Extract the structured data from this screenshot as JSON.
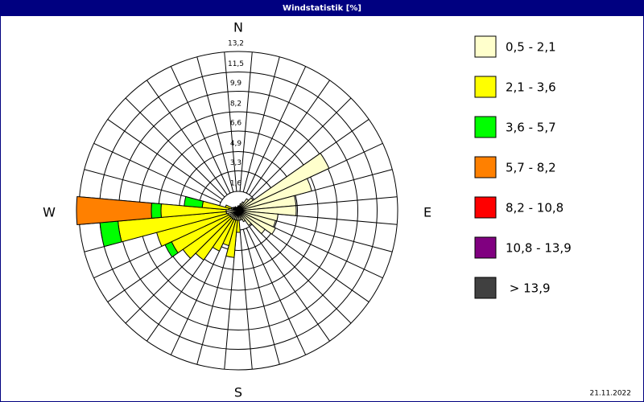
{
  "chart_data": {
    "type": "windrose",
    "title": "Windstatistik [%]",
    "date": "21.11.2022",
    "compass": {
      "N": "N",
      "E": "E",
      "S": "S",
      "W": "W"
    },
    "directions": [
      0,
      10,
      20,
      30,
      40,
      50,
      60,
      70,
      80,
      90,
      100,
      110,
      120,
      130,
      140,
      150,
      160,
      170,
      180,
      190,
      200,
      210,
      220,
      230,
      240,
      250,
      260,
      270,
      280,
      290,
      300,
      310,
      320,
      330,
      340,
      350
    ],
    "rlim": [
      0,
      13.2
    ],
    "rticks": [
      {
        "value": 1.6,
        "label": "1,6"
      },
      {
        "value": 3.3,
        "label": "3,3"
      },
      {
        "value": 4.9,
        "label": "4,9"
      },
      {
        "value": 6.6,
        "label": "6,6"
      },
      {
        "value": 8.2,
        "label": "8,2"
      },
      {
        "value": 9.9,
        "label": "9,9"
      },
      {
        "value": 11.5,
        "label": "11,5"
      },
      {
        "value": 13.2,
        "label": "13,2"
      }
    ],
    "series": [
      {
        "name": "0,5 - 2,1",
        "color": "#ffffcc",
        "values": [
          0.4,
          0.4,
          0.6,
          0.8,
          1.2,
          1.5,
          8.3,
          6.3,
          4.8,
          4.8,
          3.3,
          3.2,
          3.4,
          2.7,
          1.5,
          1.0,
          0.8,
          0.8,
          0.8,
          0.8,
          0.8,
          0.8,
          0.8,
          0.8,
          0.8,
          0.9,
          1.0,
          1.0,
          0.8,
          0.6,
          0.5,
          0.4,
          0.4,
          0.3,
          0.3,
          0.3
        ]
      },
      {
        "name": "2,1 - 3,6",
        "color": "#ffff00",
        "values": [
          0,
          0,
          0,
          0,
          0,
          0,
          0,
          0,
          0,
          0,
          0,
          0,
          0,
          0,
          0,
          0,
          0,
          0,
          1.0,
          3.1,
          2.2,
          2.9,
          4.2,
          4.8,
          5.3,
          6.1,
          9.0,
          5.4,
          2.2,
          0.5,
          0,
          0,
          0,
          0,
          0,
          0
        ]
      },
      {
        "name": "3,6 - 5,7",
        "color": "#00ff00",
        "values": [
          0,
          0,
          0,
          0,
          0,
          0,
          0,
          0,
          0,
          0,
          0,
          0,
          0,
          0,
          0,
          0,
          0,
          0,
          0,
          0,
          0,
          0,
          0,
          0,
          0.6,
          0,
          1.5,
          0.8,
          1.5,
          0,
          0,
          0,
          0,
          0,
          0,
          0
        ]
      },
      {
        "name": "5,7 - 8,2",
        "color": "#ff8000",
        "values": [
          0,
          0,
          0,
          0,
          0,
          0,
          0,
          0,
          0,
          0,
          0,
          0,
          0,
          0,
          0,
          0,
          0,
          0,
          0,
          0,
          0,
          0,
          0,
          0,
          0,
          0,
          0,
          6.2,
          0,
          0,
          0,
          0,
          0,
          0,
          0,
          0
        ]
      },
      {
        "name": "8,2 - 10,8",
        "color": "#ff0000",
        "values": [
          0,
          0,
          0,
          0,
          0,
          0,
          0,
          0,
          0,
          0,
          0,
          0,
          0,
          0,
          0,
          0,
          0,
          0,
          0,
          0,
          0,
          0,
          0,
          0,
          0,
          0,
          0,
          0,
          0,
          0,
          0,
          0,
          0,
          0,
          0,
          0
        ]
      },
      {
        "name": "10,8 - 13,9",
        "color": "#800080",
        "values": [
          0,
          0,
          0,
          0,
          0,
          0,
          0,
          0,
          0,
          0,
          0,
          0,
          0,
          0,
          0,
          0,
          0,
          0,
          0,
          0,
          0,
          0,
          0,
          0,
          0,
          0,
          0,
          0,
          0,
          0,
          0,
          0,
          0,
          0,
          0,
          0
        ]
      },
      {
        "name": " > 13,9",
        "color": "#404040",
        "values": [
          0,
          0,
          0,
          0,
          0,
          0,
          0,
          0,
          0,
          0,
          0,
          0,
          0,
          0,
          0,
          0,
          0,
          0,
          0,
          0,
          0,
          0,
          0,
          0,
          0,
          0,
          0,
          0,
          0,
          0,
          0,
          0,
          0,
          0,
          0,
          0
        ]
      }
    ]
  }
}
